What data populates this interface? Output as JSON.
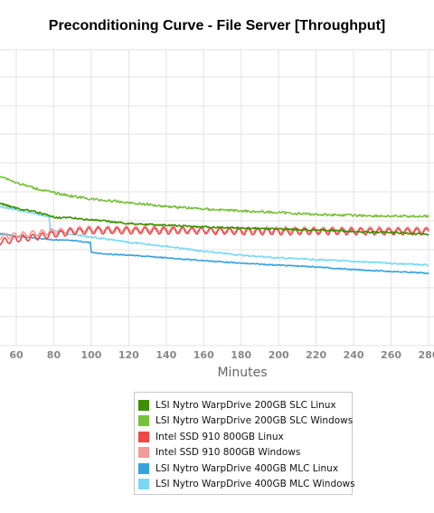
{
  "colors": {
    "nytro_slc_linux": "#3d8f00",
    "nytro_slc_windows": "#77c13b",
    "intel_linux": "#f04848",
    "intel_windows": "#f59a9a",
    "nytro_mlc_linux": "#36a2dc",
    "nytro_mlc_windows": "#7ad8f6",
    "grid": "#e3e3e3",
    "tick_text": "#888888"
  },
  "chart_data": {
    "type": "line",
    "title": "Preconditioning Curve - File Server [Throughput]",
    "xlabel": "Minutes",
    "ylabel": "",
    "x_ticks": [
      60,
      80,
      100,
      120,
      140,
      160,
      180,
      200,
      220,
      240,
      260,
      280
    ],
    "xlim": [
      50,
      280
    ],
    "grid": true,
    "legend_position": "bottom-center",
    "series": [
      {
        "name": "LSI Nytro WarpDrive 200GB SLC Linux",
        "color_key": "nytro_slc_linux",
        "shape": "decay",
        "noise": 1.0,
        "x": [
          50,
          60,
          70,
          80,
          90,
          100,
          110,
          120,
          140,
          160,
          180,
          200,
          220,
          240,
          260,
          280
        ],
        "y": [
          224,
          230,
          234,
          240,
          241,
          243,
          245,
          247,
          249,
          251,
          252,
          253,
          254,
          256,
          257,
          259
        ]
      },
      {
        "name": "LSI Nytro WarpDrive 200GB SLC Windows",
        "color_key": "nytro_slc_windows",
        "shape": "decay",
        "noise": 1.3,
        "x": [
          50,
          60,
          70,
          80,
          90,
          100,
          110,
          120,
          140,
          160,
          180,
          200,
          220,
          240,
          260,
          280
        ],
        "y": [
          193,
          202,
          208,
          213,
          217,
          220,
          222,
          224,
          228,
          231,
          233,
          235,
          237,
          238,
          239,
          239
        ]
      },
      {
        "name": "Intel SSD 910 800GB Linux",
        "color_key": "intel_linux",
        "shape": "wave",
        "amp": 3.5,
        "period": 5,
        "x": [
          50,
          60,
          70,
          80,
          90,
          100,
          120,
          140,
          160,
          180,
          200,
          220,
          240,
          260,
          280
        ],
        "y": [
          268,
          264,
          262,
          259,
          256,
          255,
          255,
          255,
          255,
          256,
          256,
          256,
          256,
          256,
          256
        ]
      },
      {
        "name": "Intel SSD 910 800GB Windows",
        "color_key": "intel_windows",
        "shape": "wave",
        "amp": 3.0,
        "period": 5,
        "x": [
          50,
          60,
          70,
          80,
          90,
          100,
          120,
          140,
          160,
          180,
          200,
          220,
          240,
          260,
          280
        ],
        "y": [
          262,
          260,
          258,
          256,
          254,
          253,
          253,
          253,
          254,
          254,
          254,
          254,
          254,
          254,
          254
        ]
      },
      {
        "name": "LSI Nytro WarpDrive 400GB MLC Linux",
        "color_key": "nytro_mlc_linux",
        "shape": "step",
        "noise": 0.6,
        "x": [
          50,
          60,
          70,
          80,
          90,
          99.5,
          100,
          110,
          120,
          140,
          160,
          180,
          200,
          220,
          240,
          260,
          280
        ],
        "y": [
          258,
          261,
          263,
          265,
          266,
          268,
          279,
          281,
          282,
          285,
          288,
          291,
          293,
          295,
          298,
          300,
          302
        ]
      },
      {
        "name": "LSI Nytro WarpDrive 400GB MLC Windows",
        "color_key": "nytro_mlc_windows",
        "shape": "step",
        "noise": 0.9,
        "x": [
          50,
          60,
          70,
          77.5,
          78,
          90,
          100,
          110,
          120,
          140,
          160,
          180,
          200,
          220,
          240,
          260,
          280
        ],
        "y": [
          228,
          232,
          236,
          240,
          254,
          259,
          262,
          265,
          268,
          272,
          278,
          282,
          285,
          287,
          289,
          291,
          293
        ]
      }
    ]
  },
  "legend": {
    "items": [
      {
        "label": "LSI Nytro WarpDrive 200GB SLC Linux",
        "color_key": "nytro_slc_linux"
      },
      {
        "label": "LSI Nytro WarpDrive 200GB SLC Windows",
        "color_key": "nytro_slc_windows"
      },
      {
        "label": "Intel SSD 910 800GB Linux",
        "color_key": "intel_linux"
      },
      {
        "label": "Intel SSD 910 800GB Windows",
        "color_key": "intel_windows"
      },
      {
        "label": "LSI Nytro WarpDrive 400GB MLC Linux",
        "color_key": "nytro_mlc_linux"
      },
      {
        "label": "LSI Nytro WarpDrive 400GB MLC Windows",
        "color_key": "nytro_mlc_windows"
      }
    ]
  }
}
